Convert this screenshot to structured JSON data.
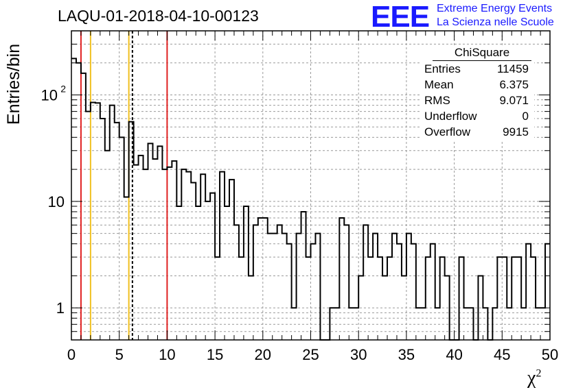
{
  "header": {
    "title": "LAQU-01-2018-04-10-00123",
    "logo_text": "EEE",
    "logo_line1": "Extreme Energy Events",
    "logo_line2": "La Scienza nelle Scuole"
  },
  "stats": {
    "title": "ChiSquare",
    "rows": [
      {
        "label": "Entries",
        "value": "11459"
      },
      {
        "label": "Mean",
        "value": "6.375"
      },
      {
        "label": "RMS",
        "value": "9.071"
      },
      {
        "label": "Underflow",
        "value": "0"
      },
      {
        "label": "Overflow",
        "value": "9915"
      }
    ]
  },
  "colors": {
    "red_line": "#e02020",
    "yellow_line": "#f0c020",
    "histogram": "#000000",
    "grid": "#999999",
    "logo": "#1a1aff"
  },
  "chart_data": {
    "type": "histogram",
    "xlabel": "χ",
    "xlabel_sup": "2",
    "ylabel": "Entries/bin",
    "xlim": [
      0,
      50
    ],
    "ylim": [
      0.5,
      400
    ],
    "log_y": true,
    "grid": true,
    "bin_width": 0.5,
    "x_ticks": [
      0,
      5,
      10,
      15,
      20,
      25,
      30,
      35,
      40,
      45,
      50
    ],
    "y_tick_labels": [
      "1",
      "10",
      "10²"
    ],
    "counts": [
      220,
      200,
      160,
      70,
      85,
      84,
      60,
      30,
      80,
      55,
      40,
      11,
      56,
      22,
      27,
      20,
      35,
      25,
      33,
      20,
      21,
      24,
      9,
      20,
      19,
      15,
      9,
      18,
      10,
      12,
      3,
      19,
      9,
      16,
      6,
      3,
      9,
      2,
      6,
      7,
      7,
      5,
      5,
      6,
      5,
      4,
      1,
      5,
      8,
      3,
      4,
      5,
      0,
      0,
      1,
      1,
      7,
      6,
      1,
      1,
      2,
      6,
      3,
      5,
      3,
      2,
      3,
      5,
      4,
      2,
      5,
      4,
      1,
      1,
      3,
      4,
      1,
      3,
      2,
      0,
      0,
      3,
      1,
      1,
      0,
      2,
      1,
      0,
      1,
      3,
      3,
      1,
      3,
      3,
      1,
      4,
      3,
      1,
      1,
      4
    ],
    "vertical_lines": [
      {
        "x": 1,
        "color": "red",
        "style": "solid"
      },
      {
        "x": 2,
        "color": "yellow",
        "style": "solid"
      },
      {
        "x": 6,
        "color": "yellow",
        "style": "solid"
      },
      {
        "x": 6.375,
        "color": "black",
        "style": "dashed"
      },
      {
        "x": 10,
        "color": "red",
        "style": "solid"
      }
    ]
  }
}
